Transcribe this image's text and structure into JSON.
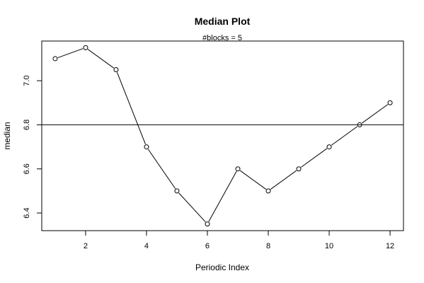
{
  "chart_data": {
    "type": "line",
    "title": "Median Plot",
    "subtitle": "#blocks =  5",
    "xlabel": "Periodic Index",
    "ylabel": "median",
    "x": [
      1,
      2,
      3,
      4,
      5,
      6,
      7,
      8,
      9,
      10,
      11,
      12
    ],
    "y": [
      7.1,
      7.15,
      7.05,
      6.7,
      6.5,
      6.35,
      6.6,
      6.5,
      6.6,
      6.7,
      6.8,
      6.9
    ],
    "xlim": [
      0.56,
      12.44
    ],
    "ylim": [
      6.32,
      7.18
    ],
    "xticks": [
      2,
      4,
      6,
      8,
      10,
      12
    ],
    "xtick_labels": [
      "2",
      "4",
      "6",
      "8",
      "10",
      "12"
    ],
    "yticks": [
      6.4,
      6.6,
      6.8,
      7.0
    ],
    "ytick_labels": [
      "6.4",
      "6.6",
      "6.8",
      "7.0"
    ],
    "reference_line": 6.8,
    "marker": "open-circle",
    "line_color": "#000000",
    "grid": false,
    "legend": "none"
  }
}
